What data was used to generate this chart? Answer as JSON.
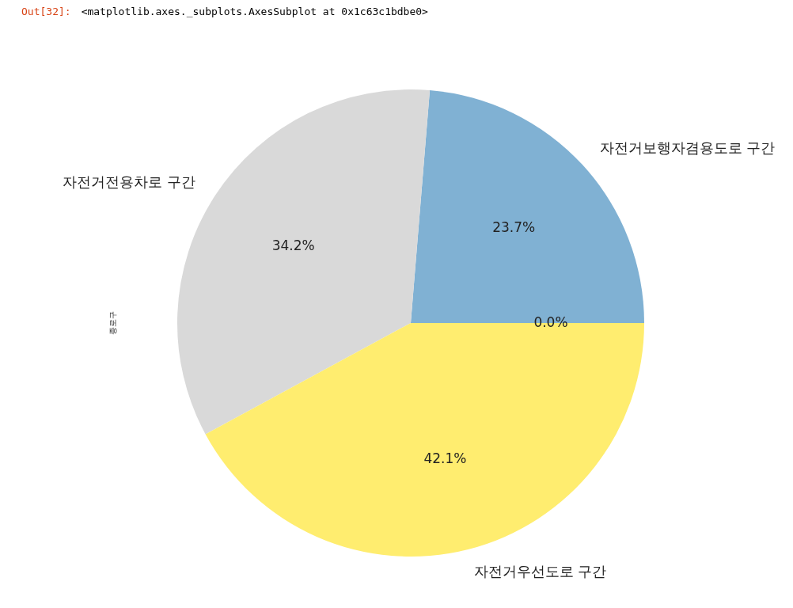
{
  "chart_data": {
    "type": "pie",
    "ylabel": "종로구",
    "categories": [
      "자전거보행자겸용도로 구간",
      "자전거전용차로 구간",
      "자전거우선도로 구간",
      null
    ],
    "values": [
      23.7,
      34.2,
      42.1,
      0.0
    ],
    "colors": [
      "#80b1d3",
      "#d9d9d9",
      "#ffed6f",
      "#fb8072"
    ],
    "value_labels": [
      "23.7%",
      "34.2%",
      "42.1%",
      "0.0%"
    ],
    "annotations": [
      "Out[32]:",
      "<matplotlib.axes._subplots.AxesSubplot at 0x1c63c1bdbe0>"
    ]
  }
}
